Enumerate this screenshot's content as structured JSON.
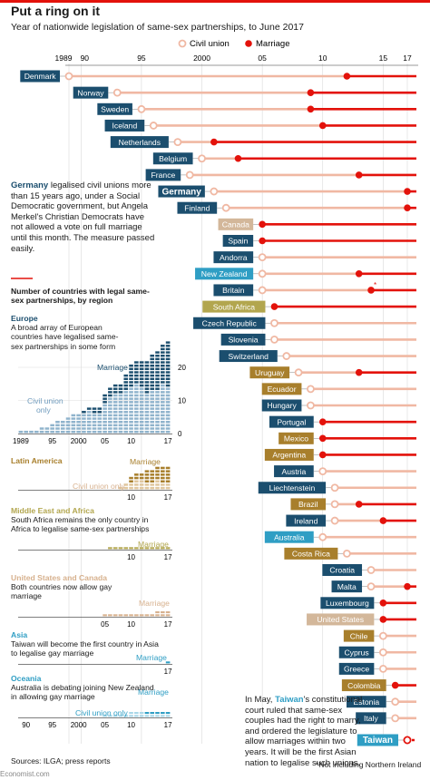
{
  "header": {
    "title": "Put a ring on it",
    "subtitle": "Year of nationwide legislation of same-sex partnerships, to June 2017"
  },
  "legend": {
    "civil": "Civil union",
    "marriage": "Marriage"
  },
  "colors": {
    "red": "#e3120b",
    "civil": "#f0b8a3",
    "navy": "#1b4e6e",
    "olive": "#b2a64e",
    "tan": "#d7b18e",
    "gold": "#a87f2c",
    "sky": "#2f9ec4",
    "gray_label": "#d3b79a"
  },
  "chart_data": [
    {
      "type": "timeline",
      "x_ticks": [
        "1989",
        "90",
        "95",
        "2000",
        "05",
        "10",
        "15",
        "17"
      ],
      "x_range": [
        1989,
        2017.5
      ],
      "rows": [
        {
          "country": "Denmark",
          "region": "europe",
          "civil": 1989,
          "marriage": 2012
        },
        {
          "country": "Norway",
          "region": "europe",
          "civil": 1993,
          "marriage": 2009
        },
        {
          "country": "Sweden",
          "region": "europe",
          "civil": 1995,
          "marriage": 2009
        },
        {
          "country": "Iceland",
          "region": "europe",
          "civil": 1996,
          "marriage": 2010
        },
        {
          "country": "Netherlands",
          "region": "europe",
          "civil": 1998,
          "marriage": 2001
        },
        {
          "country": "Belgium",
          "region": "europe",
          "civil": 2000,
          "marriage": 2003
        },
        {
          "country": "France",
          "region": "europe",
          "civil": 1999,
          "marriage": 2013
        },
        {
          "country": "Germany",
          "region": "europe",
          "civil": 2001,
          "marriage": 2017,
          "bold": true
        },
        {
          "country": "Finland",
          "region": "europe",
          "civil": 2002,
          "marriage": 2017
        },
        {
          "country": "Canada",
          "region": "usca",
          "civil": null,
          "marriage": 2005
        },
        {
          "country": "Spain",
          "region": "europe",
          "civil": null,
          "marriage": 2005
        },
        {
          "country": "Andorra",
          "region": "europe",
          "civil": 2005,
          "marriage": null
        },
        {
          "country": "New Zealand",
          "region": "oceania",
          "civil": 2005,
          "marriage": 2013
        },
        {
          "country": "Britain",
          "region": "europe",
          "civil": 2005,
          "marriage": 2014,
          "star": true
        },
        {
          "country": "South Africa",
          "region": "mea",
          "civil": null,
          "marriage": 2006
        },
        {
          "country": "Czech Republic",
          "region": "europe",
          "civil": 2006,
          "marriage": null
        },
        {
          "country": "Slovenia",
          "region": "europe",
          "civil": 2006,
          "marriage": null
        },
        {
          "country": "Switzerland",
          "region": "europe",
          "civil": 2007,
          "marriage": null
        },
        {
          "country": "Uruguay",
          "region": "latam",
          "civil": 2008,
          "marriage": 2013
        },
        {
          "country": "Ecuador",
          "region": "latam",
          "civil": 2009,
          "marriage": null
        },
        {
          "country": "Hungary",
          "region": "europe",
          "civil": 2009,
          "marriage": null
        },
        {
          "country": "Portugal",
          "region": "europe",
          "civil": null,
          "marriage": 2010
        },
        {
          "country": "Mexico",
          "region": "latam",
          "civil": null,
          "marriage": 2010
        },
        {
          "country": "Argentina",
          "region": "latam",
          "civil": null,
          "marriage": 2010
        },
        {
          "country": "Austria",
          "region": "europe",
          "civil": 2010,
          "marriage": null
        },
        {
          "country": "Liechtenstein",
          "region": "europe",
          "civil": 2011,
          "marriage": null
        },
        {
          "country": "Brazil",
          "region": "latam",
          "civil": 2011,
          "marriage": 2013
        },
        {
          "country": "Ireland",
          "region": "europe",
          "civil": 2011,
          "marriage": 2015
        },
        {
          "country": "Australia",
          "region": "oceania",
          "civil": 2010,
          "marriage": null
        },
        {
          "country": "Costa Rica",
          "region": "latam",
          "civil": 2012,
          "marriage": null
        },
        {
          "country": "Croatia",
          "region": "europe",
          "civil": 2014,
          "marriage": null
        },
        {
          "country": "Malta",
          "region": "europe",
          "civil": 2014,
          "marriage": 2017
        },
        {
          "country": "Luxembourg",
          "region": "europe",
          "civil": null,
          "marriage": 2015
        },
        {
          "country": "United States",
          "region": "usca",
          "civil": null,
          "marriage": 2015
        },
        {
          "country": "Chile",
          "region": "latam",
          "civil": 2015,
          "marriage": null
        },
        {
          "country": "Cyprus",
          "region": "europe",
          "civil": 2015,
          "marriage": null
        },
        {
          "country": "Greece",
          "region": "europe",
          "civil": 2015,
          "marriage": null
        },
        {
          "country": "Colombia",
          "region": "latam",
          "civil": null,
          "marriage": 2016
        },
        {
          "country": "Estonia",
          "region": "europe",
          "civil": 2016,
          "marriage": null
        },
        {
          "country": "Italy",
          "region": "europe",
          "civil": 2016,
          "marriage": null
        },
        {
          "country": "Taiwan",
          "region": "asia",
          "civil": null,
          "marriage": 2017,
          "bold": true,
          "dotted": true
        }
      ]
    },
    {
      "type": "bar",
      "title": "Number of countries with legal same-sex partnerships, by region",
      "x": [
        1989,
        1990,
        1991,
        1992,
        1993,
        1994,
        1995,
        1996,
        1997,
        1998,
        1999,
        2000,
        2001,
        2002,
        2003,
        2004,
        2005,
        2006,
        2007,
        2008,
        2009,
        2010,
        2011,
        2012,
        2013,
        2014,
        2015,
        2016,
        2017
      ],
      "x_ticks": [
        "1989",
        "95",
        "2000",
        "05",
        "10",
        "17"
      ],
      "panels": [
        {
          "region": "Europe",
          "note": "A broad array of European countries have legalised same-sex partnerships in some form",
          "ylim": [
            0,
            30
          ],
          "y_ticks": [
            "0",
            "10",
            "20"
          ],
          "series": [
            {
              "name": "Civil union only",
              "values": [
                1,
                1,
                1,
                1,
                2,
                2,
                3,
                4,
                4,
                5,
                6,
                6,
                6,
                7,
                6,
                6,
                9,
                11,
                12,
                12,
                13,
                14,
                15,
                14,
                12,
                13,
                13,
                15,
                14
              ]
            },
            {
              "name": "Marriage",
              "values": [
                0,
                0,
                0,
                0,
                0,
                0,
                0,
                0,
                0,
                0,
                0,
                0,
                1,
                1,
                2,
                2,
                3,
                3,
                3,
                3,
                5,
                7,
                7,
                8,
                10,
                11,
                12,
                12,
                14
              ]
            }
          ]
        },
        {
          "region": "Latin America",
          "note": "",
          "labels": [
            "Civil union only",
            "Marriage"
          ],
          "series": [
            {
              "name": "Civil union only",
              "values": [
                0,
                0,
                0,
                0,
                0,
                0,
                0,
                0,
                0,
                0,
                0,
                0,
                0,
                0,
                0,
                0,
                0,
                0,
                0,
                1,
                2,
                2,
                3,
                3,
                2,
                2,
                3,
                2,
                2
              ]
            },
            {
              "name": "Marriage",
              "values": [
                0,
                0,
                0,
                0,
                0,
                0,
                0,
                0,
                0,
                0,
                0,
                0,
                0,
                0,
                0,
                0,
                0,
                0,
                0,
                0,
                0,
                2,
                2,
                2,
                4,
                4,
                4,
                5,
                5
              ]
            }
          ],
          "x_ticks": [
            "10",
            "17"
          ]
        },
        {
          "region": "Middle East and Africa",
          "note": "South Africa remains the only country in Africa to legalise same-sex partnerships",
          "series": [
            {
              "name": "Marriage",
              "values": [
                0,
                0,
                0,
                0,
                0,
                0,
                0,
                0,
                0,
                0,
                0,
                0,
                0,
                0,
                0,
                0,
                0,
                1,
                1,
                1,
                1,
                1,
                1,
                1,
                1,
                1,
                1,
                1,
                1
              ]
            }
          ],
          "x_ticks": [
            "10",
            "17"
          ]
        },
        {
          "region": "United States and Canada",
          "note": "Both countries now allow gay marriage",
          "series": [
            {
              "name": "Marriage",
              "values": [
                0,
                0,
                0,
                0,
                0,
                0,
                0,
                0,
                0,
                0,
                0,
                0,
                0,
                0,
                0,
                0,
                1,
                1,
                1,
                1,
                1,
                1,
                1,
                1,
                1,
                1,
                2,
                2,
                2
              ]
            }
          ],
          "x_ticks": [
            "05",
            "10",
            "17"
          ]
        },
        {
          "region": "Asia",
          "note": "Taiwan will become the first country in Asia to legalise gay marriage",
          "series": [
            {
              "name": "Marriage",
              "values": [
                0,
                0,
                0,
                0,
                0,
                0,
                0,
                0,
                0,
                0,
                0,
                0,
                0,
                0,
                0,
                0,
                0,
                0,
                0,
                0,
                0,
                0,
                0,
                0,
                0,
                0,
                0,
                0,
                1
              ]
            }
          ],
          "x_ticks": [
            "17"
          ]
        },
        {
          "region": "Oceania",
          "note": "Australia is debating joining New Zealand in allowing gay marriage",
          "series": [
            {
              "name": "Civil union only",
              "values": [
                0,
                0,
                0,
                0,
                0,
                0,
                0,
                0,
                0,
                0,
                0,
                0,
                0,
                0,
                0,
                0,
                1,
                1,
                1,
                1,
                1,
                2,
                2,
                2,
                1,
                1,
                1,
                1,
                1
              ]
            },
            {
              "name": "Marriage",
              "values": [
                0,
                0,
                0,
                0,
                0,
                0,
                0,
                0,
                0,
                0,
                0,
                0,
                0,
                0,
                0,
                0,
                0,
                0,
                0,
                0,
                0,
                0,
                0,
                0,
                1,
                1,
                1,
                1,
                1
              ]
            }
          ],
          "x_ticks": [
            "90",
            "95",
            "2000",
            "05",
            "10",
            "17"
          ]
        }
      ]
    }
  ],
  "notes": {
    "germany": "legalised civil unions more than 15 years ago, under a Social Democratic government, but Angela Merkel's Christian Democrats have not allowed a vote on full marriage until this month. The measure passed easily.",
    "germany_name": "Germany",
    "taiwan_pre": "In May,",
    "taiwan_name": "Taiwan",
    "taiwan": "'s constitutional court ruled that same-sex couples had the right to marry, and ordered the legislature to allow marriages within two years. It will be the first Asian nation to legalise such unions.",
    "footnote": "*Not including Northern Ireland",
    "source": "Sources: ILGA; press reports",
    "credit": "Economist.com"
  }
}
